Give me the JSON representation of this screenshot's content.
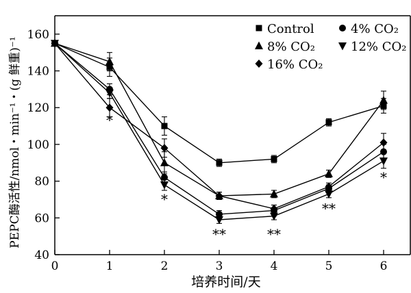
{
  "chart_data": {
    "type": "line",
    "title": "",
    "xlabel": "培养时间/天",
    "ylabel": "PEPC酶活性/nmol・min⁻¹・(g 鲜重)⁻¹",
    "xlim": [
      0,
      6.5
    ],
    "ylim": [
      40,
      170
    ],
    "x_ticks": [
      0,
      1,
      2,
      3,
      4,
      5,
      6
    ],
    "y_ticks": [
      40,
      60,
      80,
      100,
      120,
      140,
      160
    ],
    "x": [
      0,
      1,
      2,
      3,
      4,
      5,
      6
    ],
    "series": [
      {
        "name": "Control",
        "marker": "square",
        "values": [
          155,
          142,
          110,
          90,
          92,
          112,
          121
        ],
        "errors": [
          0,
          5,
          5,
          2,
          2,
          2,
          4
        ]
      },
      {
        "name": "4% CO₂",
        "marker": "circle",
        "values": [
          155,
          130,
          82,
          62,
          64,
          76,
          96
        ],
        "errors": [
          0,
          3,
          3,
          2,
          3,
          2,
          4
        ]
      },
      {
        "name": "8% CO₂",
        "marker": "triangle",
        "values": [
          155,
          145,
          90,
          72,
          73,
          84,
          124
        ],
        "errors": [
          0,
          5,
          6,
          2,
          2,
          2,
          5
        ]
      },
      {
        "name": "12% CO₂",
        "marker": "triangle-down",
        "values": [
          155,
          128,
          78,
          59,
          61,
          73,
          91
        ],
        "errors": [
          0,
          3,
          3,
          2,
          2,
          2,
          4
        ]
      },
      {
        "name": "16% CO₂",
        "marker": "diamond",
        "values": [
          155,
          120,
          98,
          72,
          65,
          77,
          101
        ],
        "errors": [
          0,
          5,
          5,
          2,
          2,
          2,
          5
        ]
      }
    ],
    "annotations": [
      {
        "x": 1,
        "y": 115,
        "text": "*"
      },
      {
        "x": 2,
        "y": 72,
        "text": "*"
      },
      {
        "x": 3,
        "y": 53,
        "text": "**"
      },
      {
        "x": 4,
        "y": 53,
        "text": "**"
      },
      {
        "x": 5,
        "y": 67,
        "text": "**"
      },
      {
        "x": 6,
        "y": 84,
        "text": "*"
      }
    ],
    "legend": {
      "position": "top-right",
      "entries": [
        "Control",
        "4% CO₂",
        "8% CO₂",
        "12% CO₂",
        "16% CO₂"
      ]
    }
  }
}
